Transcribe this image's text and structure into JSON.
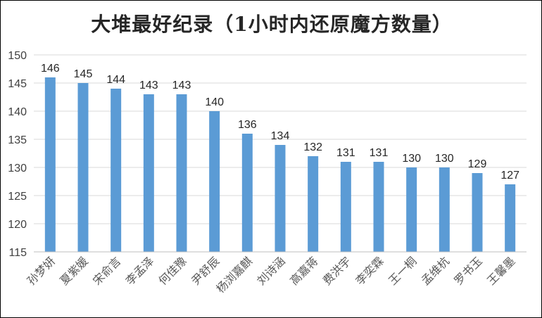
{
  "chart_data": {
    "type": "bar",
    "title": "大堆最好纪录（1小时内还原魔方数量）",
    "categories": [
      "孙梦妍",
      "夏紫媛",
      "宋俞言",
      "李孟泽",
      "何佳豫",
      "尹舒辰",
      "杨浏嘉麒",
      "刘诗涵",
      "高嘉蒋",
      "费洪宇",
      "李奕霖",
      "王一桐",
      "孟维杭",
      "罗书玉",
      "王馨墨"
    ],
    "values": [
      146,
      145,
      144,
      143,
      143,
      140,
      136,
      134,
      132,
      131,
      131,
      130,
      130,
      129,
      127
    ],
    "ylim": [
      115,
      150
    ],
    "yticks": [
      115,
      120,
      125,
      130,
      135,
      140,
      145,
      150
    ],
    "grid": true,
    "bar_color": "#5b9bd5",
    "grid_color": "#d9d9d9"
  }
}
